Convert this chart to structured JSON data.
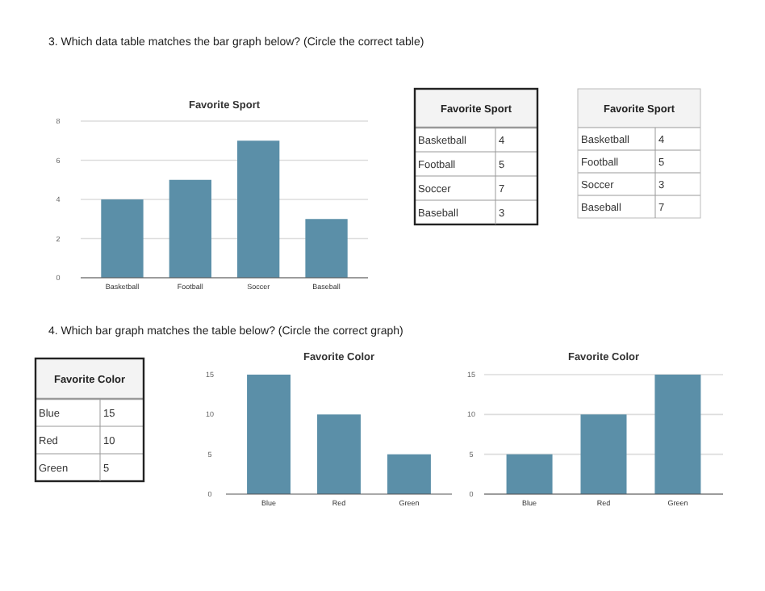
{
  "chart_data": [
    {
      "type": "other",
      "title": "3.  Which data table matches the bar graph below? (Circle the correct table)"
    },
    {
      "type": "bar",
      "title": "Favorite Sport",
      "categories": [
        "Basketball",
        "Football",
        "Soccer",
        "Baseball"
      ],
      "values": [
        4,
        5,
        7,
        3
      ],
      "color": "#5b8fa8",
      "ylim": [
        0,
        8
      ],
      "yticks": [
        0,
        2,
        4,
        6,
        8
      ],
      "grid": "y"
    },
    {
      "type": "other",
      "title": "Favorite Sport",
      "categories": [
        "Basketball",
        "Football",
        "Soccer",
        "Baseball"
      ],
      "values": [
        4,
        5,
        7,
        3
      ],
      "data_labels": true
    },
    {
      "type": "other",
      "title": "Favorite Sport",
      "categories": [
        "Basketball",
        "Football",
        "Soccer",
        "Baseball"
      ],
      "values": [
        4,
        5,
        3,
        7
      ],
      "data_labels": true
    },
    {
      "type": "other",
      "title": "4.  Which bar graph matches the table below? (Circle the correct graph)"
    },
    {
      "type": "other",
      "title": "Favorite Color",
      "categories": [
        "Blue",
        "Red",
        "Green"
      ],
      "values": [
        15,
        10,
        5
      ],
      "data_labels": true
    },
    {
      "type": "bar",
      "title": "Favorite Color",
      "categories": [
        "Blue",
        "Red",
        "Green"
      ],
      "values": [
        15,
        10,
        5
      ],
      "color": "#5b8fa8",
      "ylim": [
        0,
        15
      ],
      "yticks": [
        0,
        5,
        10,
        15
      ]
    },
    {
      "type": "bar",
      "title": "Favorite Color",
      "categories": [
        "Blue",
        "Red",
        "Green"
      ],
      "values": [
        5,
        10,
        15
      ],
      "color": "#5b8fa8",
      "ylim": [
        0,
        15
      ],
      "yticks": [
        0,
        5,
        10,
        15
      ],
      "grid": "y"
    }
  ]
}
